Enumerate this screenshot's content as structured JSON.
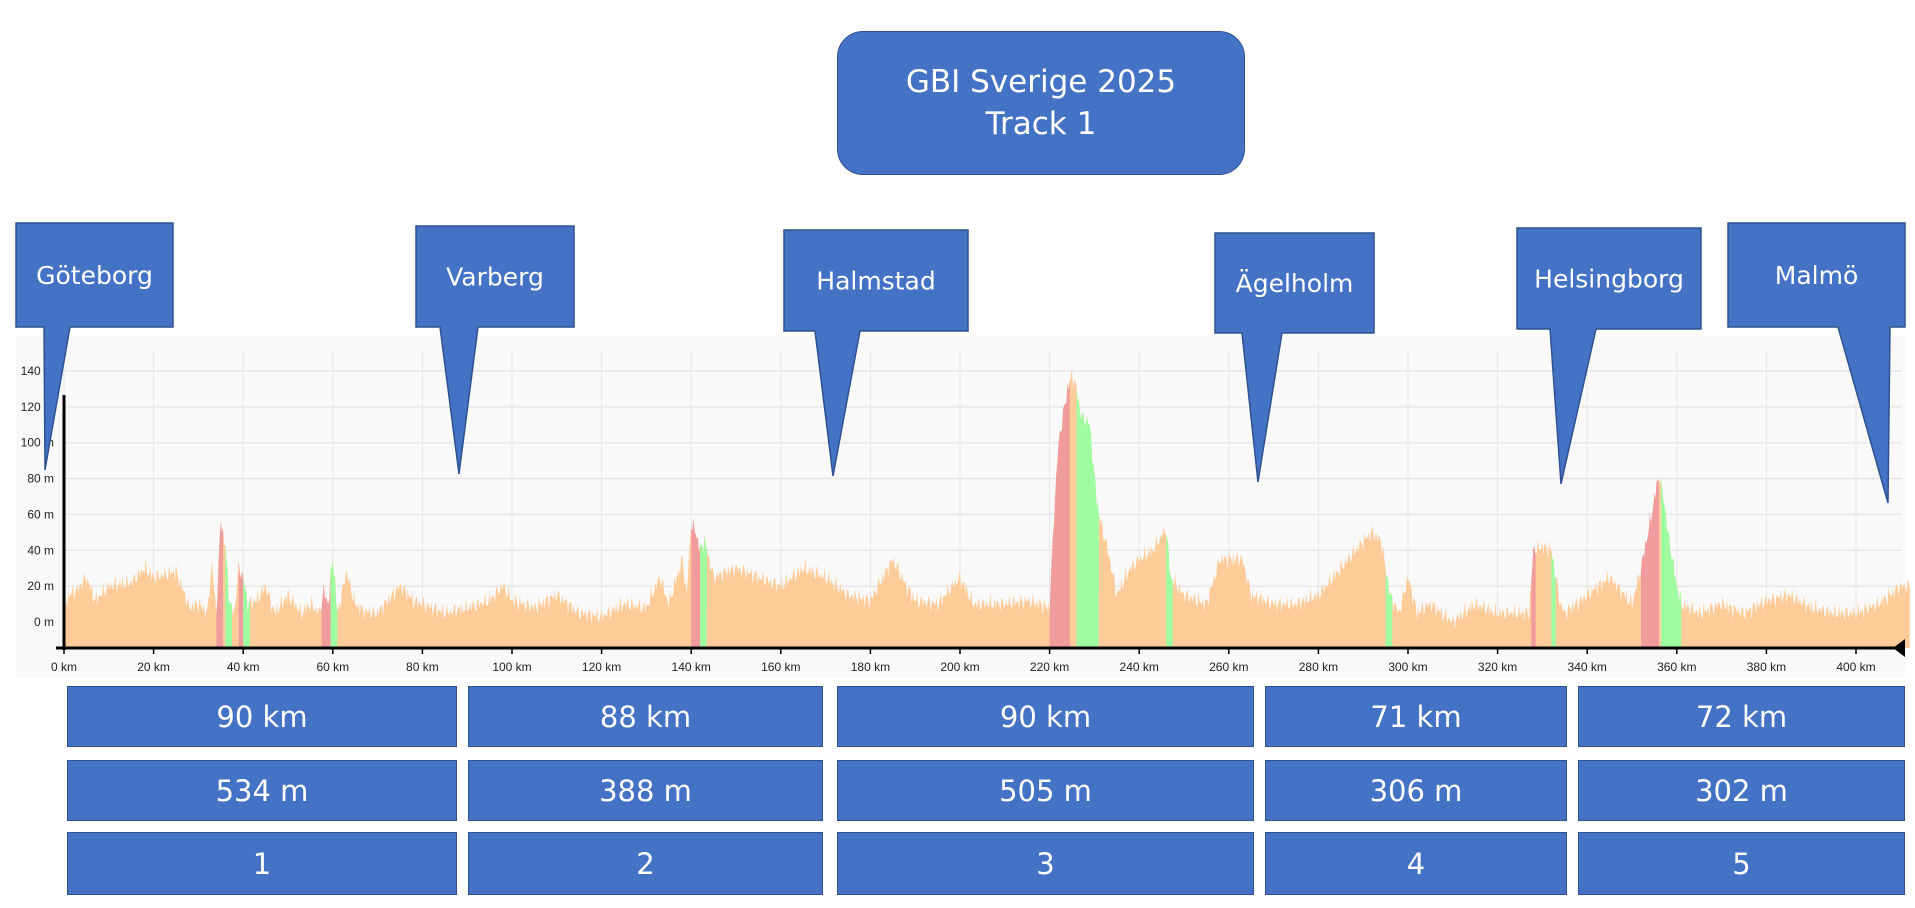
{
  "title": {
    "line1": "GBI Sverige 2025",
    "line2": "Track 1"
  },
  "colors": {
    "box": "#4472C4",
    "box_border": "#2F528F",
    "flat": "#FFCC99",
    "climb": "#F19C9C",
    "descent": "#A0FCA0",
    "plot_bg": "#F9F9F9",
    "grid": "#E6E6E6"
  },
  "cities": [
    {
      "name": "Göteborg",
      "km": 0
    },
    {
      "name": "Varberg",
      "km": 88
    },
    {
      "name": "Halmstad",
      "km": 172
    },
    {
      "name": "Ägelholm",
      "km": 267
    },
    {
      "name": "Helsingborg",
      "km": 334
    },
    {
      "name": "Malmö",
      "km": 408
    }
  ],
  "stages": [
    {
      "distance": "90 km",
      "climb": "534 m",
      "number": "1"
    },
    {
      "distance": "88 km",
      "climb": "388 m",
      "number": "2"
    },
    {
      "distance": "90 km",
      "climb": "505 m",
      "number": "3"
    },
    {
      "distance": "71 km",
      "climb": "306 m",
      "number": "4"
    },
    {
      "distance": "72 km",
      "climb": "302 m",
      "number": "5"
    }
  ],
  "chart_data": {
    "type": "area",
    "title": "",
    "xlabel": "",
    "ylabel": "",
    "xlim": [
      0,
      412
    ],
    "ylim": [
      -14,
      150
    ],
    "x_ticks": [
      "0 km",
      "20 km",
      "40 km",
      "60 km",
      "80 km",
      "100 km",
      "120 km",
      "140 km",
      "160 km",
      "180 km",
      "200 km",
      "220 km",
      "240 km",
      "260 km",
      "280 km",
      "300 km",
      "320 km",
      "340 km",
      "360 km",
      "380 km",
      "400 km"
    ],
    "y_ticks": [
      "0 m",
      "20 m",
      "40 m",
      "60 m",
      "80 m",
      "100 m",
      "120 m",
      "140 m"
    ],
    "grid": true,
    "elevation": [
      [
        0,
        5
      ],
      [
        1,
        15
      ],
      [
        3,
        18
      ],
      [
        5,
        25
      ],
      [
        7,
        12
      ],
      [
        10,
        20
      ],
      [
        15,
        22
      ],
      [
        18,
        30
      ],
      [
        20,
        25
      ],
      [
        25,
        28
      ],
      [
        28,
        8
      ],
      [
        30,
        10
      ],
      [
        32,
        5
      ],
      [
        33,
        32
      ],
      [
        34,
        5
      ],
      [
        35,
        57
      ],
      [
        36,
        42
      ],
      [
        37,
        10
      ],
      [
        38,
        5
      ],
      [
        39,
        30
      ],
      [
        40,
        25
      ],
      [
        41,
        10
      ],
      [
        43,
        12
      ],
      [
        45,
        20
      ],
      [
        47,
        5
      ],
      [
        50,
        15
      ],
      [
        53,
        5
      ],
      [
        55,
        10
      ],
      [
        57,
        5
      ],
      [
        58,
        17
      ],
      [
        59,
        10
      ],
      [
        60,
        37
      ],
      [
        61,
        5
      ],
      [
        62,
        15
      ],
      [
        63,
        28
      ],
      [
        65,
        10
      ],
      [
        67,
        6
      ],
      [
        70,
        5
      ],
      [
        75,
        20
      ],
      [
        78,
        12
      ],
      [
        80,
        10
      ],
      [
        85,
        5
      ],
      [
        90,
        8
      ],
      [
        95,
        12
      ],
      [
        98,
        20
      ],
      [
        100,
        12
      ],
      [
        105,
        8
      ],
      [
        110,
        15
      ],
      [
        115,
        5
      ],
      [
        120,
        3
      ],
      [
        125,
        10
      ],
      [
        130,
        8
      ],
      [
        133,
        25
      ],
      [
        135,
        10
      ],
      [
        138,
        35
      ],
      [
        139,
        15
      ],
      [
        140,
        55
      ],
      [
        141,
        50
      ],
      [
        142,
        40
      ],
      [
        143,
        45
      ],
      [
        145,
        25
      ],
      [
        150,
        30
      ],
      [
        155,
        25
      ],
      [
        160,
        20
      ],
      [
        165,
        30
      ],
      [
        170,
        25
      ],
      [
        175,
        15
      ],
      [
        180,
        12
      ],
      [
        185,
        35
      ],
      [
        188,
        20
      ],
      [
        190,
        12
      ],
      [
        195,
        10
      ],
      [
        200,
        25
      ],
      [
        203,
        10
      ],
      [
        210,
        10
      ],
      [
        215,
        12
      ],
      [
        220,
        8
      ],
      [
        221,
        60
      ],
      [
        222,
        100
      ],
      [
        224,
        130
      ],
      [
        225,
        138
      ],
      [
        226,
        130
      ],
      [
        227,
        115
      ],
      [
        229,
        110
      ],
      [
        230,
        80
      ],
      [
        231,
        60
      ],
      [
        233,
        40
      ],
      [
        235,
        15
      ],
      [
        238,
        30
      ],
      [
        240,
        35
      ],
      [
        243,
        40
      ],
      [
        246,
        52
      ],
      [
        247,
        25
      ],
      [
        250,
        15
      ],
      [
        255,
        10
      ],
      [
        258,
        35
      ],
      [
        260,
        35
      ],
      [
        263,
        35
      ],
      [
        265,
        15
      ],
      [
        270,
        10
      ],
      [
        275,
        10
      ],
      [
        280,
        15
      ],
      [
        285,
        30
      ],
      [
        290,
        45
      ],
      [
        292,
        50
      ],
      [
        294,
        45
      ],
      [
        296,
        15
      ],
      [
        298,
        5
      ],
      [
        300,
        25
      ],
      [
        302,
        5
      ],
      [
        305,
        10
      ],
      [
        310,
        0
      ],
      [
        315,
        10
      ],
      [
        320,
        5
      ],
      [
        327,
        5
      ],
      [
        328,
        40
      ],
      [
        330,
        42
      ],
      [
        332,
        40
      ],
      [
        334,
        10
      ],
      [
        335,
        5
      ],
      [
        340,
        15
      ],
      [
        345,
        25
      ],
      [
        350,
        10
      ],
      [
        352,
        30
      ],
      [
        354,
        55
      ],
      [
        356,
        82
      ],
      [
        357,
        70
      ],
      [
        358,
        50
      ],
      [
        360,
        20
      ],
      [
        361,
        10
      ],
      [
        365,
        5
      ],
      [
        370,
        10
      ],
      [
        375,
        5
      ],
      [
        380,
        12
      ],
      [
        385,
        15
      ],
      [
        390,
        8
      ],
      [
        395,
        5
      ],
      [
        400,
        5
      ],
      [
        405,
        10
      ],
      [
        410,
        20
      ],
      [
        412,
        20
      ]
    ],
    "segments": [
      {
        "type": "climb",
        "from": 34,
        "to": 35.5
      },
      {
        "type": "descent",
        "from": 36,
        "to": 37.5
      },
      {
        "type": "climb",
        "from": 39,
        "to": 40
      },
      {
        "type": "descent",
        "from": 40,
        "to": 41.5
      },
      {
        "type": "climb",
        "from": 57.5,
        "to": 59.5
      },
      {
        "type": "descent",
        "from": 59.5,
        "to": 61
      },
      {
        "type": "climb",
        "from": 140,
        "to": 142
      },
      {
        "type": "descent",
        "from": 142,
        "to": 143.5
      },
      {
        "type": "climb",
        "from": 220,
        "to": 224.5
      },
      {
        "type": "descent",
        "from": 226,
        "to": 231
      },
      {
        "type": "descent",
        "from": 246,
        "to": 247.5
      },
      {
        "type": "descent",
        "from": 295,
        "to": 296.5
      },
      {
        "type": "climb",
        "from": 327.5,
        "to": 328.5
      },
      {
        "type": "descent",
        "from": 332,
        "to": 333
      },
      {
        "type": "climb",
        "from": 352,
        "to": 356
      },
      {
        "type": "descent",
        "from": 356.5,
        "to": 361
      }
    ]
  }
}
